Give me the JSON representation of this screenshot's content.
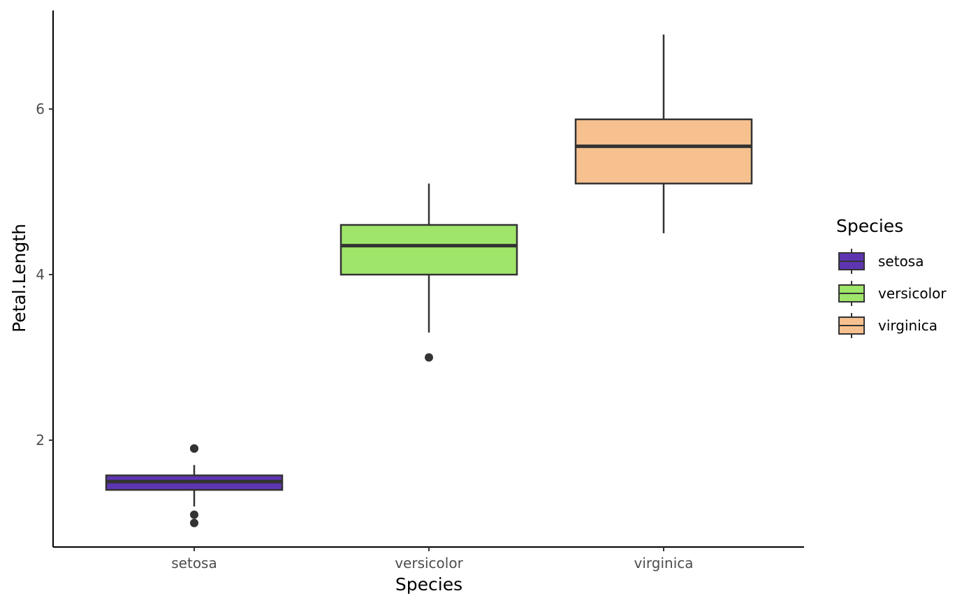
{
  "chart_data": {
    "type": "boxplot",
    "title": "",
    "xlabel": "Species",
    "ylabel": "Petal.Length",
    "ylim": [
      0.71,
      7.19
    ],
    "yticks": [
      2,
      4,
      6
    ],
    "ytick_labels": [
      "2",
      "4",
      "6"
    ],
    "grid": false,
    "legend": {
      "title": "Species",
      "placement": "right"
    },
    "categories": [
      "setosa",
      "versicolor",
      "virginica"
    ],
    "series": [
      {
        "name": "setosa",
        "color": "#5e35b1",
        "q1": 1.4,
        "median": 1.5,
        "q3": 1.575,
        "whisker_low": 1.2,
        "whisker_high": 1.7,
        "outliers": [
          1.0,
          1.1,
          1.9,
          1.9
        ]
      },
      {
        "name": "versicolor",
        "color": "#9ee56a",
        "q1": 4.0,
        "median": 4.35,
        "q3": 4.6,
        "whisker_low": 3.3,
        "whisker_high": 5.1,
        "outliers": [
          3.0
        ]
      },
      {
        "name": "virginica",
        "color": "#f6c18f",
        "q1": 5.1,
        "median": 5.55,
        "q3": 5.875,
        "whisker_low": 4.5,
        "whisker_high": 6.9,
        "outliers": []
      }
    ]
  }
}
